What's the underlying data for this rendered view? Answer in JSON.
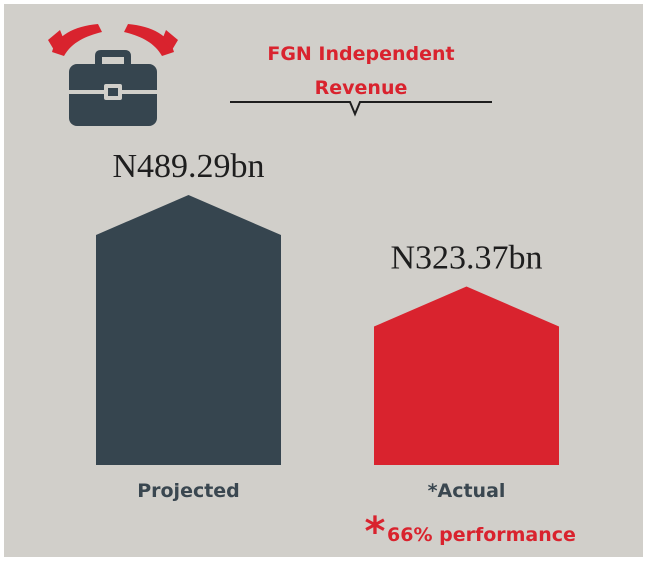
{
  "chart_data": {
    "type": "bar",
    "title": "FGN Independent Revenue",
    "title_lines": [
      "FGN Independent",
      "Revenue"
    ],
    "categories": [
      "Projected",
      "*Actual"
    ],
    "values": [
      489.29,
      323.37
    ],
    "value_labels": [
      "N489.29bn",
      "N323.37bn"
    ],
    "colors": [
      "#36454f",
      "#d9232e"
    ],
    "footnote_marker": "*",
    "footnote": "66% performance"
  }
}
